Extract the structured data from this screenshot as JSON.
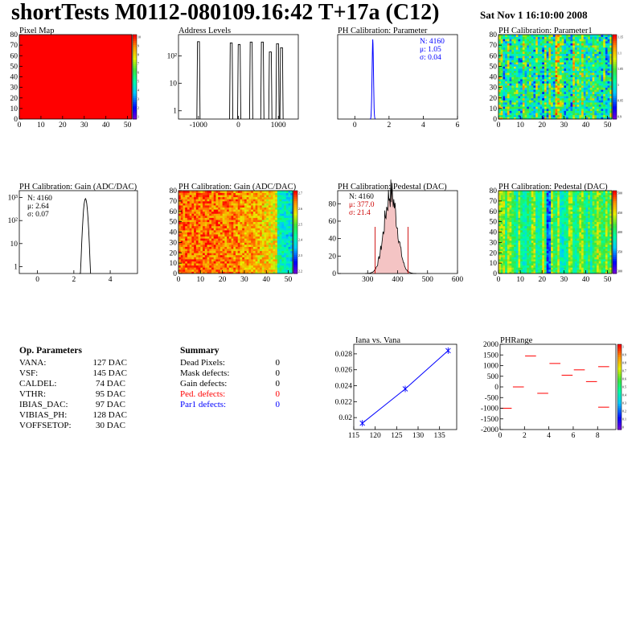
{
  "title": "shortTests M0112-080109.16:42 T+17a (C12)",
  "date": "Sat Nov  1 16:10:00 2008",
  "colors": {
    "red": "#ff0000",
    "blue": "#0000ff",
    "dark_red": "#cc0000"
  },
  "op_parameters": {
    "heading": "Op. Parameters",
    "items": [
      {
        "name": "VANA:",
        "value": "127 DAC"
      },
      {
        "name": "VSF:",
        "value": "145 DAC"
      },
      {
        "name": "CALDEL:",
        "value": "74 DAC"
      },
      {
        "name": "VTHR:",
        "value": "95 DAC"
      },
      {
        "name": "IBIAS_DAC:",
        "value": "97 DAC"
      },
      {
        "name": "VIBIAS_PH:",
        "value": "128 DAC"
      },
      {
        "name": "VOFFSETOP:",
        "value": "30 DAC"
      }
    ]
  },
  "summary": {
    "heading": "Summary",
    "items": [
      {
        "name": "Dead Pixels:",
        "value": "0",
        "color": "#000000"
      },
      {
        "name": "Mask defects:",
        "value": "0",
        "color": "#000000"
      },
      {
        "name": "Gain defects:",
        "value": "0",
        "color": "#000000"
      },
      {
        "name": "Ped. defects:",
        "value": "0",
        "color": "#ff0000"
      },
      {
        "name": "Par1 defects:",
        "value": "0",
        "color": "#0000ff"
      }
    ]
  },
  "chart_data": [
    {
      "id": "pixel-map",
      "type": "heatmap",
      "title": "Pixel Map",
      "xlim": [
        0,
        52
      ],
      "ylim": [
        0,
        80
      ],
      "xticks": [
        "0",
        "10",
        "20",
        "30",
        "40",
        "50"
      ],
      "yticks": [
        "0",
        "10",
        "20",
        "30",
        "40",
        "50",
        "60",
        "70",
        "80"
      ],
      "uniform_value": 10,
      "uniform_color": "#ff0000",
      "palette_labels": [
        "10",
        "9",
        "8",
        "7",
        "6",
        "5",
        "4",
        "3",
        "2",
        "1"
      ]
    },
    {
      "id": "address-levels",
      "type": "bar",
      "title": "Address Levels",
      "log_y": true,
      "xlim": [
        -1500,
        1500
      ],
      "ylim": [
        0.5,
        600
      ],
      "xticks": [
        "-1000",
        "0",
        "1000"
      ],
      "yticks": [
        "1",
        "10",
        "10²"
      ],
      "peaks": [
        {
          "x": -1000,
          "y": 330
        },
        {
          "x": -180,
          "y": 300
        },
        {
          "x": 20,
          "y": 260
        },
        {
          "x": 320,
          "y": 320
        },
        {
          "x": 600,
          "y": 320
        },
        {
          "x": 800,
          "y": 140
        },
        {
          "x": 980,
          "y": 280
        },
        {
          "x": 1080,
          "y": 200
        }
      ]
    },
    {
      "id": "ph-cal-parameter",
      "type": "bar",
      "title": "PH Calibration: Parameter",
      "xlim": [
        -1,
        6
      ],
      "xticks": [
        "0",
        "2",
        "4",
        "6"
      ],
      "stats": [
        {
          "text": "N: 4160",
          "color": "#0000ff"
        },
        {
          "text": "μ: 1.05",
          "color": "#0000ff"
        },
        {
          "text": "σ: 0.04",
          "color": "#0000ff"
        }
      ],
      "peak": {
        "mean": 1.05,
        "sigma": 0.04
      }
    },
    {
      "id": "ph-cal-parameter1",
      "type": "heatmap",
      "title": "PH Calibration: Parameter1",
      "xlim": [
        0,
        52
      ],
      "ylim": [
        0,
        80
      ],
      "xticks": [
        "0",
        "10",
        "20",
        "30",
        "40",
        "50"
      ],
      "yticks": [
        "0",
        "10",
        "20",
        "30",
        "40",
        "50",
        "60",
        "70",
        "80"
      ],
      "palette_labels": [
        "1.15",
        "1.1",
        "1.05",
        "1",
        "0.95",
        "0.9"
      ]
    },
    {
      "id": "ph-cal-gain-hist",
      "type": "bar",
      "title": "PH Calibration: Gain (ADC/DAC)",
      "log_y": true,
      "xlim": [
        -1,
        5.5
      ],
      "ylim": [
        0.5,
        2000
      ],
      "xticks": [
        "0",
        "2",
        "4"
      ],
      "yticks": [
        "1",
        "10",
        "10²",
        "10³"
      ],
      "stats": [
        {
          "text": "N: 4160",
          "color": "#000000"
        },
        {
          "text": "μ: 2.64",
          "color": "#000000"
        },
        {
          "text": "σ: 0.07",
          "color": "#000000"
        }
      ],
      "peak": {
        "mean": 2.64,
        "sigma": 0.07
      }
    },
    {
      "id": "ph-cal-gain-map",
      "type": "heatmap",
      "title": "PH Calibration: Gain (ADC/DAC)",
      "xlim": [
        0,
        52
      ],
      "ylim": [
        0,
        80
      ],
      "xticks": [
        "0",
        "10",
        "20",
        "30",
        "40",
        "50"
      ],
      "yticks": [
        "0",
        "10",
        "20",
        "30",
        "40",
        "50",
        "60",
        "70",
        "80"
      ],
      "palette_labels": [
        "2.7",
        "2.6",
        "2.5",
        "2.4",
        "2.3",
        "2.2"
      ]
    },
    {
      "id": "ph-cal-pedestal-hist",
      "type": "bar",
      "title": "PH Calibration: Pedestal (DAC)",
      "xlim": [
        200,
        600
      ],
      "ylim": [
        0,
        95
      ],
      "xticks": [
        "300",
        "400",
        "500",
        "600"
      ],
      "yticks": [
        "0",
        "20",
        "40",
        "60",
        "80"
      ],
      "stats": [
        {
          "text": "N: 4160",
          "color": "#000000"
        },
        {
          "text": "μ: 377.0",
          "color": "#cc0000"
        },
        {
          "text": "σ: 21.4",
          "color": "#cc0000"
        }
      ],
      "peak": {
        "mean": 377,
        "sigma": 21.4,
        "max": 92
      },
      "cut_lines": [
        325,
        435
      ]
    },
    {
      "id": "ph-cal-pedestal-map",
      "type": "heatmap",
      "title": "PH Calibration: Pedestal (DAC)",
      "xlim": [
        0,
        52
      ],
      "ylim": [
        0,
        80
      ],
      "xticks": [
        "0",
        "10",
        "20",
        "30",
        "40",
        "50"
      ],
      "yticks": [
        "0",
        "10",
        "20",
        "30",
        "40",
        "50",
        "60",
        "70",
        "80"
      ],
      "palette_labels": [
        "500",
        "450",
        "400",
        "350",
        "300"
      ]
    },
    {
      "id": "iana-vs-vana",
      "type": "line",
      "title": "Iana vs. Vana",
      "xlim": [
        115,
        139
      ],
      "ylim": [
        0.0185,
        0.0292
      ],
      "xticks": [
        "115",
        "120",
        "125",
        "130",
        "135"
      ],
      "yticks": [
        "0.02",
        "0.022",
        "0.024",
        "0.026",
        "0.028"
      ],
      "x": [
        117,
        127,
        137
      ],
      "y": [
        0.0193,
        0.0236,
        0.0284
      ]
    },
    {
      "id": "ph-range",
      "type": "scatter",
      "title": "PHRange",
      "xlim": [
        0,
        9.5
      ],
      "ylim": [
        -2000,
        2000
      ],
      "xticks": [
        "0",
        "2",
        "4",
        "6",
        "8"
      ],
      "yticks": [
        "-2000",
        "-1500",
        "-1000",
        "-500",
        "0",
        "500",
        "1000",
        "1500",
        "2000"
      ],
      "segments": [
        {
          "x": 0.5,
          "y": -1000
        },
        {
          "x": 1.5,
          "y": 0
        },
        {
          "x": 2.5,
          "y": 1450
        },
        {
          "x": 3.5,
          "y": -300
        },
        {
          "x": 4.5,
          "y": 1100
        },
        {
          "x": 5.5,
          "y": 550
        },
        {
          "x": 6.5,
          "y": 800
        },
        {
          "x": 7.5,
          "y": 250
        },
        {
          "x": 8.5,
          "y": 950
        },
        {
          "x": 8.5,
          "y": -950
        }
      ],
      "palette_labels": [
        "1",
        "0.9",
        "0.8",
        "0.7",
        "0.6",
        "0.5",
        "0.4",
        "0.3",
        "0.2",
        "0.1",
        "0"
      ]
    }
  ]
}
